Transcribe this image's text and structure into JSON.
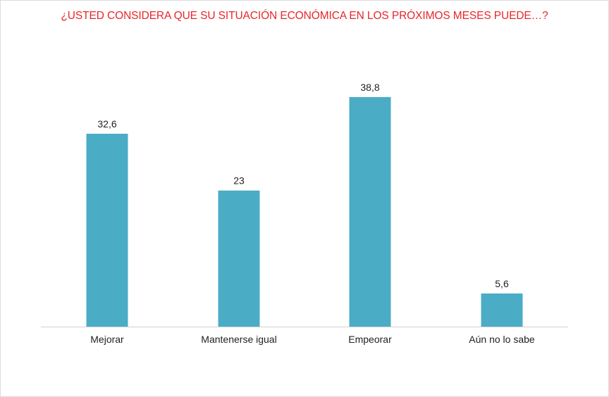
{
  "chart_data": {
    "type": "bar",
    "title": "¿USTED CONSIDERA QUE SU SITUACIÓN ECONÓMICA EN LOS PRÓXIMOS MESES PUEDE…?",
    "categories": [
      "Mejorar",
      "Mantenerse igual",
      "Empeorar",
      "Aún no lo sabe"
    ],
    "values": [
      32.6,
      23,
      38.8,
      5.6
    ],
    "value_labels": [
      "32,6",
      "23",
      "38,8",
      "5,6"
    ],
    "xlabel": "",
    "ylabel": "",
    "ylim": [
      0,
      40
    ],
    "grid": false,
    "legend": "none",
    "colors": {
      "bar": "#4bacc6",
      "title": "#e8262a",
      "axis": "#d0d0d0"
    }
  }
}
